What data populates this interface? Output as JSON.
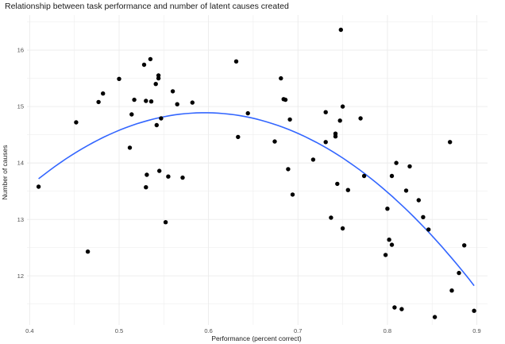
{
  "chart_data": {
    "type": "scatter",
    "title": "Relationship between task performance and number of latent causes created",
    "xlabel": "Performance (percent correct)",
    "ylabel": "Number of causes",
    "xlim": [
      0.397,
      0.912
    ],
    "ylim": [
      11.13,
      16.62
    ],
    "x_ticks": [
      0.4,
      0.5,
      0.6,
      0.7,
      0.8,
      0.9
    ],
    "x_tick_labels": [
      "0.4",
      "0.5",
      "0.6",
      "0.7",
      "0.8",
      "0.9"
    ],
    "y_ticks": [
      12,
      13,
      14,
      15,
      16
    ],
    "y_tick_labels": [
      "12",
      "13",
      "14",
      "15",
      "16"
    ],
    "grid": true,
    "colors": {
      "points": "#000000",
      "fit_line": "#3366ff",
      "grid": "#ebebeb"
    },
    "points": [
      [
        0.41,
        13.58
      ],
      [
        0.452,
        14.72
      ],
      [
        0.465,
        12.43
      ],
      [
        0.477,
        15.08
      ],
      [
        0.482,
        15.23
      ],
      [
        0.5,
        15.49
      ],
      [
        0.512,
        14.27
      ],
      [
        0.514,
        14.86
      ],
      [
        0.517,
        15.12
      ],
      [
        0.528,
        15.74
      ],
      [
        0.53,
        15.1
      ],
      [
        0.53,
        13.57
      ],
      [
        0.531,
        13.79
      ],
      [
        0.535,
        15.84
      ],
      [
        0.536,
        15.09
      ],
      [
        0.541,
        15.4
      ],
      [
        0.542,
        14.67
      ],
      [
        0.544,
        15.5
      ],
      [
        0.544,
        15.55
      ],
      [
        0.545,
        13.86
      ],
      [
        0.547,
        14.79
      ],
      [
        0.552,
        12.95
      ],
      [
        0.555,
        13.76
      ],
      [
        0.56,
        15.27
      ],
      [
        0.565,
        15.04
      ],
      [
        0.571,
        13.74
      ],
      [
        0.582,
        15.07
      ],
      [
        0.631,
        15.8
      ],
      [
        0.633,
        14.46
      ],
      [
        0.644,
        14.88
      ],
      [
        0.674,
        14.38
      ],
      [
        0.681,
        15.5
      ],
      [
        0.684,
        15.13
      ],
      [
        0.686,
        15.12
      ],
      [
        0.689,
        13.89
      ],
      [
        0.691,
        14.77
      ],
      [
        0.694,
        13.44
      ],
      [
        0.717,
        14.06
      ],
      [
        0.731,
        14.9
      ],
      [
        0.731,
        14.37
      ],
      [
        0.737,
        13.03
      ],
      [
        0.742,
        14.52
      ],
      [
        0.742,
        14.47
      ],
      [
        0.744,
        13.63
      ],
      [
        0.747,
        14.75
      ],
      [
        0.748,
        16.36
      ],
      [
        0.75,
        15.0
      ],
      [
        0.75,
        12.84
      ],
      [
        0.756,
        13.52
      ],
      [
        0.77,
        14.79
      ],
      [
        0.774,
        13.77
      ],
      [
        0.798,
        12.37
      ],
      [
        0.8,
        13.19
      ],
      [
        0.802,
        12.64
      ],
      [
        0.805,
        12.55
      ],
      [
        0.805,
        13.77
      ],
      [
        0.808,
        11.44
      ],
      [
        0.81,
        14.0
      ],
      [
        0.816,
        11.41
      ],
      [
        0.821,
        13.51
      ],
      [
        0.825,
        13.94
      ],
      [
        0.835,
        13.34
      ],
      [
        0.84,
        13.04
      ],
      [
        0.846,
        12.82
      ],
      [
        0.853,
        11.27
      ],
      [
        0.87,
        14.37
      ],
      [
        0.872,
        11.74
      ],
      [
        0.88,
        12.05
      ],
      [
        0.886,
        12.54
      ],
      [
        0.897,
        11.38
      ]
    ],
    "fit": {
      "type": "quadratic",
      "x_range": [
        0.41,
        0.897
      ],
      "vertex_x": 0.596,
      "vertex_y": 14.89,
      "y_at_start": 13.72,
      "y_at_end": 11.71
    }
  }
}
